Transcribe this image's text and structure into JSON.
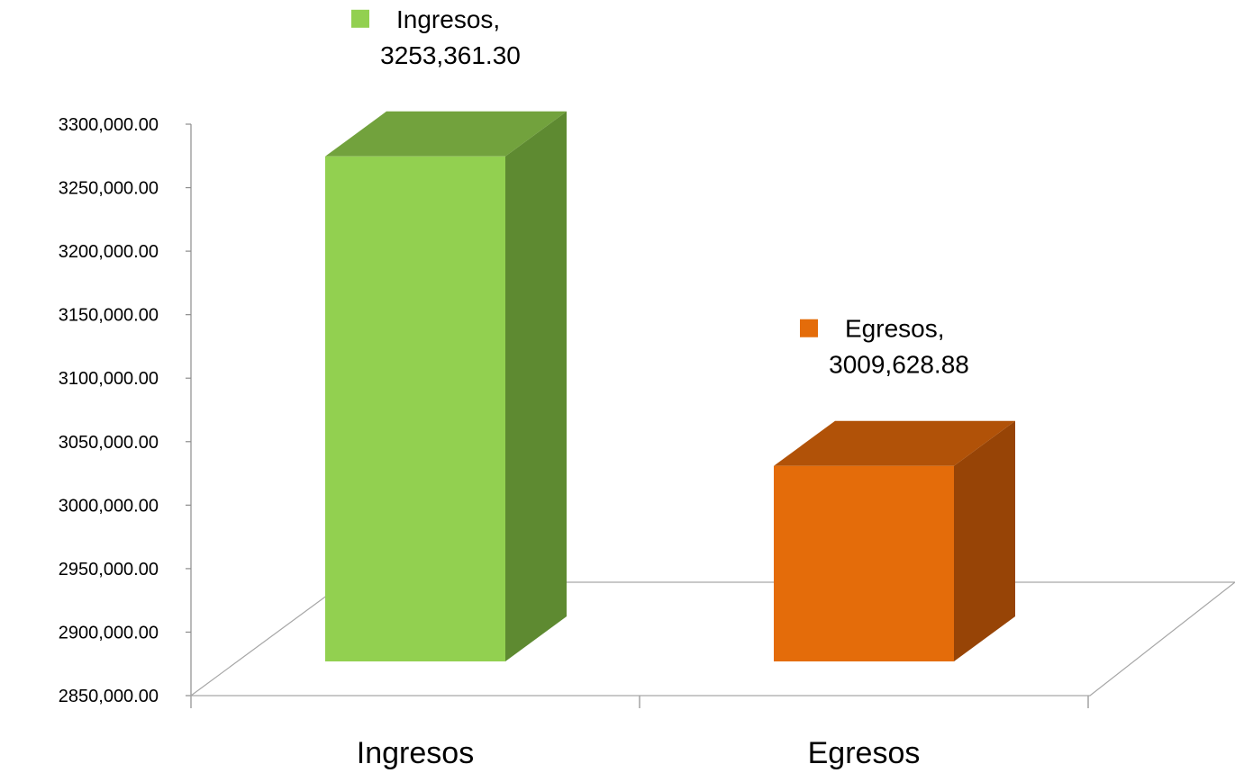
{
  "chart_data": {
    "type": "bar",
    "style": "3d-column",
    "categories": [
      "Ingresos",
      "Egresos"
    ],
    "values": [
      3253361.3,
      3009628.88
    ],
    "value_labels": [
      "3253,361.30",
      "3009,628.88"
    ],
    "ylim": [
      2850000,
      3300000
    ],
    "yticks": [
      2850000,
      2900000,
      2950000,
      3000000,
      3050000,
      3100000,
      3150000,
      3200000,
      3250000,
      3300000
    ],
    "ytick_labels": [
      "2850,000.00",
      "2900,000.00",
      "2950,000.00",
      "3000,000.00",
      "3050,000.00",
      "3100,000.00",
      "3150,000.00",
      "3200,000.00",
      "3250,000.00",
      "3300,000.00"
    ],
    "colors": {
      "Ingresos": {
        "front": "#92d050",
        "side": "#5e8a31",
        "top": "#72a23d"
      },
      "Egresos": {
        "front": "#e46c0a",
        "side": "#974406",
        "top": "#b15208"
      }
    },
    "grid": false,
    "legend": "none"
  }
}
